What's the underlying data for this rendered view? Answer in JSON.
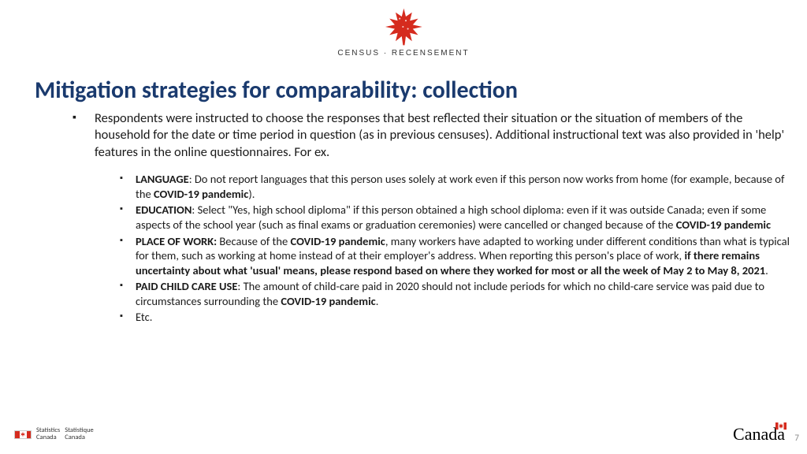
{
  "header": {
    "logo_subtitle": "CENSUS · RECENSEMENT"
  },
  "title": "Mitigation strategies for comparability: collection",
  "intro": "Respondents were instructed to choose the responses that best reflected their situation or the situation of members of the household for the date or time period in question (as in previous censuses). Additional instructional text was also provided in 'help' features in the online questionnaires. For ex.",
  "items": [
    {
      "label": "LANGUAGE",
      "pre": ": Do not report languages that this person uses solely at work even if this person now works from home (for example, because of the ",
      "bold1": "COVID-19 pandemic",
      "post": ")."
    },
    {
      "label": "EDUCATION",
      "pre": ": Select \"Yes, high school diploma\" if this person obtained a high school diploma: even if it was outside Canada; even if some aspects of the school year (such as final exams or graduation ceremonies) were cancelled or changed because of the ",
      "bold1": "COVID-19 pandemic",
      "post": ""
    },
    {
      "label": "PLACE OF WORK:",
      "pre": " Because of the ",
      "bold1": "COVID-19 pandemic",
      "mid": ", many workers have adapted to working under different conditions than what is typical for them, such as working at home instead of at their employer's address. When reporting this person's place of work, ",
      "bold2": "if there remains uncertainty about what 'usual' means, please respond based on where they worked for most or all the week of May 2 to May 8, 2021",
      "post": "."
    },
    {
      "label": "PAID CHILD CARE USE",
      "pre": ": The amount of child-care paid in 2020 should not include periods for which no child-care service was paid due to circumstances surrounding the ",
      "bold1": "COVID-19 pandemic",
      "post": "."
    },
    {
      "label": "",
      "pre": "Etc.",
      "post": ""
    }
  ],
  "footer": {
    "left_line1": "Statistics",
    "left_line2": "Canada",
    "left_line3": "Statistique",
    "left_line4": "Canada",
    "wordmark": "Canada",
    "page_number": "7"
  },
  "colors": {
    "title": "#1a3a6e",
    "red": "#d52b1e",
    "text": "#1a1a1a"
  }
}
